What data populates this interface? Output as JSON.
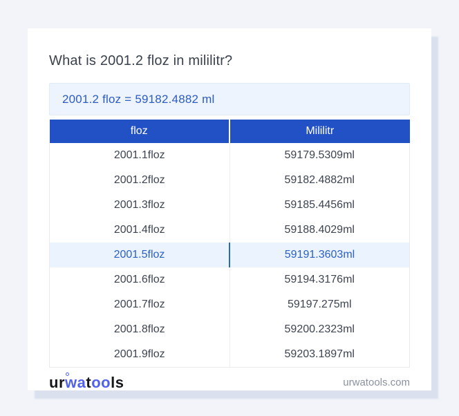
{
  "title": "What is 2001.2 floz in mililitr?",
  "result": "2001.2 floz = 59182.4882 ml",
  "table": {
    "headers": [
      "floz",
      "Mililitr"
    ],
    "rows": [
      {
        "floz": "2001.1floz",
        "ml": "59179.5309ml",
        "highlight": false
      },
      {
        "floz": "2001.2floz",
        "ml": "59182.4882ml",
        "highlight": false
      },
      {
        "floz": "2001.3floz",
        "ml": "59185.4456ml",
        "highlight": false
      },
      {
        "floz": "2001.4floz",
        "ml": "59188.4029ml",
        "highlight": false
      },
      {
        "floz": "2001.5floz",
        "ml": "59191.3603ml",
        "highlight": true
      },
      {
        "floz": "2001.6floz",
        "ml": "59194.3176ml",
        "highlight": false
      },
      {
        "floz": "2001.7floz",
        "ml": "59197.275ml",
        "highlight": false
      },
      {
        "floz": "2001.8floz",
        "ml": "59200.2323ml",
        "highlight": false
      },
      {
        "floz": "2001.9floz",
        "ml": "59203.1897ml",
        "highlight": false
      }
    ]
  },
  "footer": {
    "logo": {
      "part1": "ur",
      "part2": "wa",
      "part3": "t",
      "part4": "oo",
      "part5": "ls"
    },
    "site": "urwatools.com"
  },
  "colors": {
    "header_blue": "#2251c6",
    "result_blue": "#2c5bc1",
    "highlight_bg": "#eaf3fe",
    "page_bg": "#f2f4f9",
    "logo_accent": "#5163ee"
  }
}
